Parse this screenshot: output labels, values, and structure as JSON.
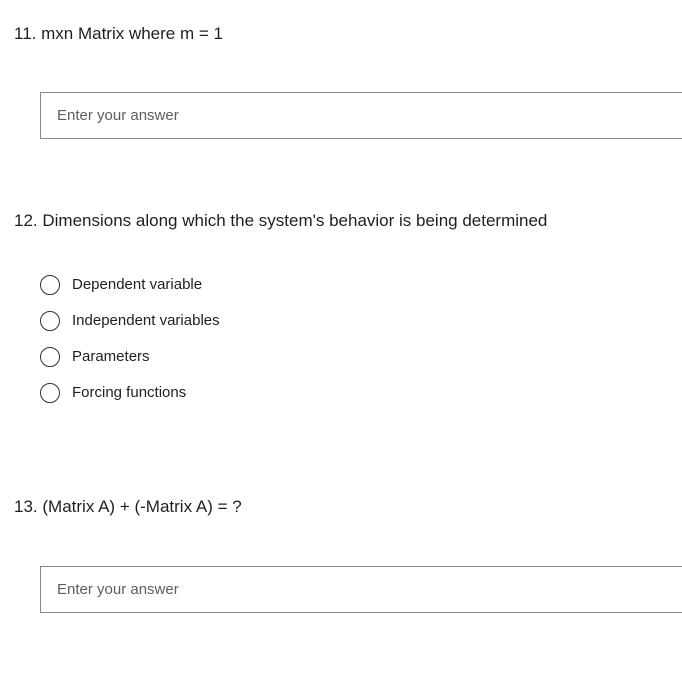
{
  "questions": [
    {
      "number": "11",
      "title": "mxn Matrix where m = 1",
      "type": "text",
      "placeholder": "Enter your answer"
    },
    {
      "number": "12",
      "title": "Dimensions along which the system's behavior is being determined",
      "type": "radio",
      "options": [
        "Dependent variable",
        "Independent variables",
        "Parameters",
        "Forcing functions"
      ]
    },
    {
      "number": "13",
      "title": "(Matrix A) + (-Matrix A) = ?",
      "type": "text",
      "placeholder": "Enter your answer"
    }
  ],
  "colors": {
    "text": "#201f1e",
    "border": "#8a8886",
    "placeholder": "#605e5c",
    "background": "#ffffff"
  },
  "typography": {
    "font_family": "Segoe UI",
    "title_fontsize": 17,
    "option_fontsize": 15,
    "input_fontsize": 15
  }
}
